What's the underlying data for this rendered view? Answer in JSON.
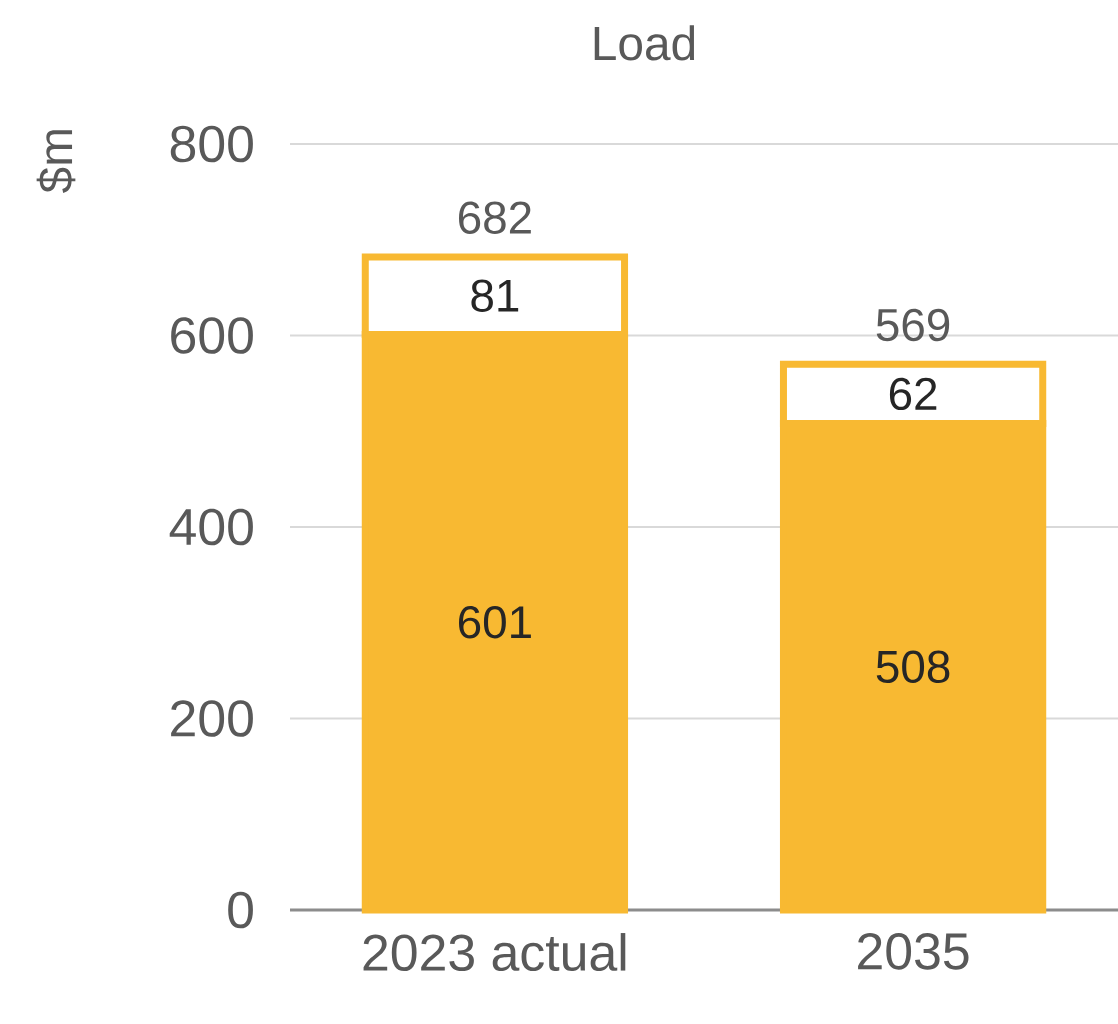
{
  "chart_data": {
    "type": "bar",
    "title": "Load",
    "ylabel": "$m",
    "categories": [
      "2023 actual",
      "2035"
    ],
    "series": [
      {
        "color": "#f8b932",
        "values": [
          601,
          508
        ]
      },
      {
        "color": "#ffffff",
        "values": [
          81,
          62
        ]
      }
    ],
    "stacked": true,
    "data_labels": true,
    "totals": [
      "682",
      "569"
    ],
    "ylim": [
      0,
      800
    ],
    "yticks": [
      0,
      200,
      400,
      600,
      800
    ],
    "grid": "y"
  }
}
